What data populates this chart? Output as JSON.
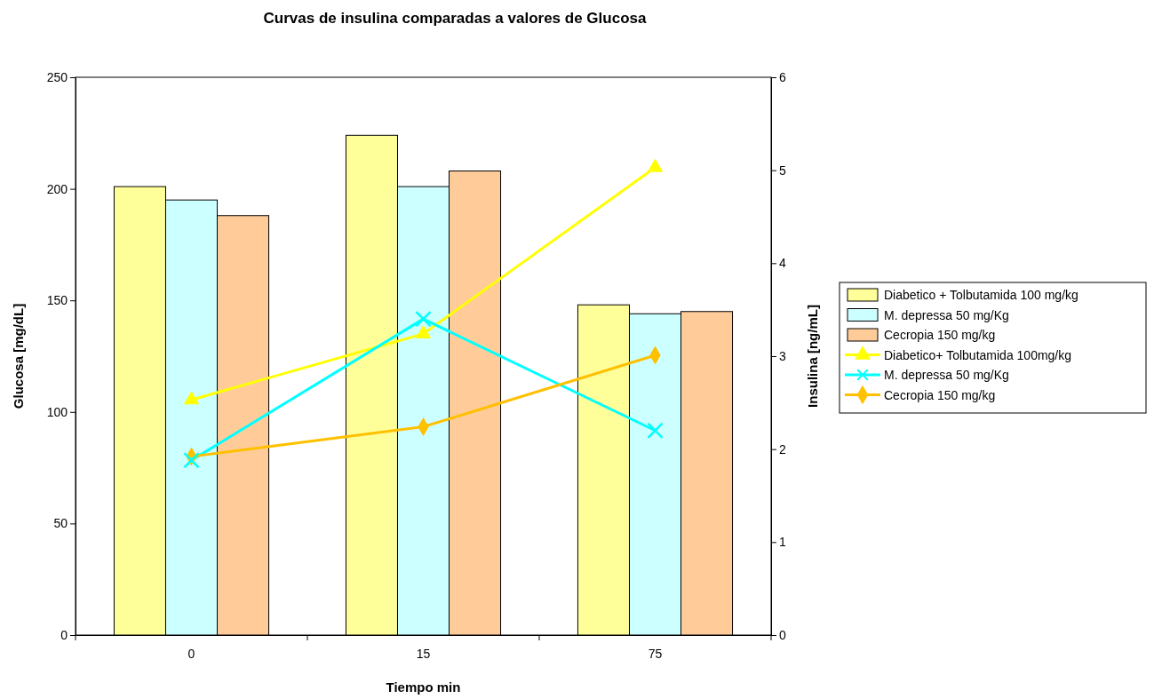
{
  "chart_data": {
    "type": "bar",
    "title": "Curvas de insulina  comparadas a valores de Glucosa",
    "xlabel": "Tiempo min",
    "ylabel": "Glucosa [mg/dL]",
    "y2label": "Insulina [ng/mL]",
    "categories": [
      "0",
      "15",
      "75"
    ],
    "ylim": [
      0,
      250
    ],
    "yticks": [
      0,
      50,
      100,
      150,
      200,
      250
    ],
    "y2lim": [
      0,
      6
    ],
    "y2ticks": [
      0,
      1,
      2,
      3,
      4,
      5,
      6
    ],
    "grid": false,
    "legend": "right",
    "series": [
      {
        "name": "Diabetico + Tolbutamida 100 mg/kg",
        "color": "#ffff99",
        "values": [
          201,
          224,
          148
        ]
      },
      {
        "name": "M. depressa 50 mg/Kg",
        "color": "#ccffff",
        "values": [
          195,
          201,
          144
        ]
      },
      {
        "name": "Cecropia 150 mg/kg",
        "color": "#ffcc99",
        "values": [
          188,
          208,
          145
        ]
      },
      {
        "name": "Diabetico+ Tolbutamida 100mg/kg",
        "type": "line",
        "axis": "y2",
        "marker": "triangle",
        "color": "#ffff00",
        "values": [
          2.53,
          3.24,
          5.03
        ]
      },
      {
        "name": "M. depressa 50 mg/Kg",
        "type": "line",
        "axis": "y2",
        "marker": "cross",
        "color": "#00ffff",
        "values": [
          1.88,
          3.4,
          2.2
        ]
      },
      {
        "name": "Cecropia 150 mg/kg",
        "type": "line",
        "axis": "y2",
        "marker": "diamond",
        "color": "#ffc000",
        "values": [
          1.92,
          2.24,
          3.01
        ]
      }
    ]
  }
}
